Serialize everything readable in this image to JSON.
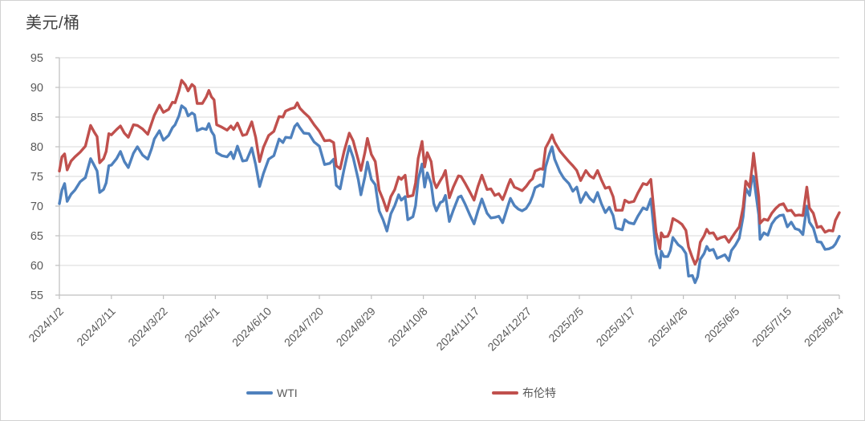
{
  "chart_data": {
    "type": "line",
    "title": "美元/桶",
    "y_axis": {
      "min": 55,
      "max": 95,
      "step": 5,
      "ticks": [
        95,
        90,
        85,
        80,
        75,
        70,
        65,
        60,
        55
      ]
    },
    "x_axis": {
      "tick_labels": [
        "2024/1/2",
        "2024/2/11",
        "2024/3/22",
        "2024/5/1",
        "2024/6/10",
        "2024/7/20",
        "2024/8/29",
        "2024/10/8",
        "2024/11/17",
        "2024/12/27",
        "2025/2/5",
        "2025/3/17",
        "2025/4/26",
        "2025/6/5",
        "2025/7/15",
        "2025/8/24"
      ],
      "tick_days": [
        0,
        40,
        80,
        120,
        160,
        200,
        240,
        280,
        320,
        360,
        400,
        440,
        480,
        520,
        560,
        600
      ],
      "label_rotation_deg": -45
    },
    "grid": true,
    "legend_position": "bottom",
    "colors": {
      "wti": "#4F81BD",
      "brent": "#C0504D",
      "grid": "#D9D9D9",
      "axis": "#BFBFBF",
      "tick_text": "#595959",
      "title_text": "#404040"
    },
    "days": [
      0,
      2,
      4,
      6,
      9,
      12,
      16,
      20,
      24,
      27,
      29,
      31,
      34,
      36,
      38,
      40,
      44,
      47,
      50,
      53,
      57,
      60,
      64,
      68,
      71,
      73,
      77,
      80,
      84,
      87,
      89,
      92,
      94,
      97,
      99,
      102,
      104,
      106,
      110,
      113,
      115,
      117,
      119,
      121,
      125,
      129,
      132,
      134,
      137,
      141,
      144,
      148,
      151,
      154,
      157,
      161,
      165,
      169,
      172,
      174,
      178,
      181,
      183,
      185,
      188,
      192,
      196,
      200,
      204,
      208,
      211,
      213,
      216,
      219,
      223,
      226,
      230,
      232,
      235,
      237,
      240,
      243,
      246,
      249,
      252,
      255,
      258,
      261,
      263,
      266,
      268,
      272,
      274,
      276,
      279,
      281,
      283,
      286,
      288,
      290,
      293,
      295,
      297,
      300,
      303,
      307,
      309,
      312,
      316,
      319,
      322,
      325,
      329,
      332,
      335,
      338,
      341,
      343,
      345,
      347,
      350,
      353,
      356,
      359,
      362,
      364,
      366,
      370,
      372,
      374,
      377,
      379,
      381,
      385,
      388,
      392,
      395,
      398,
      401,
      405,
      408,
      411,
      414,
      417,
      420,
      423,
      426,
      428,
      433,
      435,
      438,
      442,
      445,
      449,
      452,
      455,
      457,
      459,
      462,
      463,
      465,
      468,
      470,
      472,
      476,
      479,
      482,
      484,
      487,
      489,
      491,
      493,
      496,
      498,
      500,
      503,
      506,
      509,
      512,
      515,
      517,
      520,
      523,
      526,
      528,
      531,
      533,
      534,
      538,
      539,
      542,
      545,
      548,
      551,
      554,
      557,
      560,
      563,
      566,
      569,
      572,
      575,
      577,
      580,
      583,
      586,
      589,
      592,
      595,
      597,
      600
    ],
    "series": [
      {
        "name": "WTI",
        "color": "#4F81BD",
        "values": [
          70.4,
          72.7,
          73.8,
          70.8,
          72.0,
          72.7,
          74.1,
          74.8,
          78.0,
          76.8,
          75.9,
          72.3,
          72.8,
          73.9,
          76.8,
          76.9,
          78.0,
          79.2,
          77.5,
          76.5,
          78.9,
          80.0,
          78.6,
          77.9,
          79.7,
          81.3,
          82.7,
          81.1,
          81.9,
          83.2,
          83.7,
          85.2,
          86.9,
          86.4,
          85.2,
          85.7,
          85.4,
          82.7,
          83.1,
          82.9,
          83.9,
          82.6,
          81.9,
          79.0,
          78.5,
          78.3,
          79.1,
          78.0,
          80.1,
          77.6,
          77.7,
          79.8,
          77.0,
          73.3,
          75.5,
          77.9,
          78.5,
          81.3,
          80.7,
          81.6,
          81.5,
          83.4,
          83.9,
          83.2,
          82.3,
          82.2,
          80.8,
          80.1,
          77.0,
          77.2,
          77.9,
          73.5,
          72.9,
          76.2,
          80.1,
          78.2,
          74.4,
          71.9,
          74.9,
          77.4,
          74.5,
          73.6,
          69.2,
          67.7,
          65.8,
          68.7,
          70.1,
          71.9,
          71.0,
          71.6,
          67.7,
          68.2,
          70.1,
          74.4,
          77.1,
          73.2,
          75.6,
          73.8,
          70.4,
          69.2,
          70.6,
          70.8,
          71.8,
          67.4,
          69.3,
          71.5,
          71.7,
          70.4,
          68.4,
          67.0,
          69.2,
          71.2,
          68.8,
          68.0,
          68.1,
          68.3,
          67.2,
          68.6,
          70.0,
          71.3,
          70.1,
          69.5,
          69.2,
          69.6,
          70.6,
          71.7,
          73.1,
          73.6,
          73.3,
          76.6,
          78.8,
          80.0,
          77.9,
          75.8,
          74.7,
          73.8,
          72.5,
          73.2,
          70.6,
          72.3,
          71.3,
          70.7,
          72.3,
          70.4,
          68.9,
          69.8,
          68.4,
          66.3,
          66.0,
          67.7,
          67.2,
          67.0,
          68.3,
          69.7,
          69.4,
          71.2,
          66.9,
          62.0,
          59.6,
          62.4,
          61.5,
          61.5,
          62.5,
          64.7,
          63.5,
          63.0,
          62.0,
          58.2,
          58.3,
          57.1,
          58.1,
          61.0,
          62.0,
          63.2,
          62.5,
          62.7,
          61.2,
          61.5,
          61.8,
          60.8,
          62.5,
          63.4,
          64.6,
          68.2,
          73.0,
          71.8,
          75.1,
          75.0,
          68.5,
          64.4,
          65.5,
          65.1,
          67.0,
          67.9,
          68.4,
          68.5,
          66.5,
          67.3,
          66.2,
          66.0,
          65.2,
          70.0,
          67.3,
          66.3,
          64.0,
          63.9,
          62.7,
          62.8,
          63.1,
          63.6,
          64.9
        ]
      },
      {
        "name": "布伦特",
        "color": "#C0504D",
        "values": [
          75.9,
          78.3,
          78.8,
          76.1,
          77.6,
          78.3,
          79.1,
          80.1,
          83.6,
          82.4,
          81.7,
          77.3,
          78.0,
          79.2,
          82.2,
          82.0,
          82.9,
          83.5,
          82.3,
          81.6,
          83.7,
          83.6,
          83.0,
          82.1,
          84.0,
          85.3,
          87.0,
          85.8,
          86.3,
          87.5,
          87.4,
          89.4,
          91.2,
          90.4,
          89.4,
          90.5,
          90.1,
          87.3,
          87.3,
          88.4,
          89.5,
          88.4,
          87.9,
          83.7,
          83.3,
          82.8,
          83.5,
          82.9,
          84.0,
          81.9,
          82.1,
          84.2,
          81.6,
          77.5,
          79.9,
          81.9,
          82.6,
          85.1,
          85.0,
          86.0,
          86.4,
          86.6,
          87.4,
          86.5,
          85.8,
          85.0,
          83.7,
          82.6,
          81.0,
          81.1,
          80.7,
          76.8,
          76.3,
          79.2,
          82.3,
          81.0,
          77.7,
          76.0,
          79.0,
          81.4,
          78.7,
          77.5,
          72.7,
          71.1,
          69.2,
          71.6,
          72.8,
          74.9,
          74.5,
          75.2,
          71.6,
          71.8,
          73.9,
          78.0,
          80.9,
          76.6,
          79.0,
          77.5,
          74.2,
          73.1,
          74.3,
          75.0,
          76.0,
          71.4,
          73.2,
          75.1,
          75.0,
          73.9,
          72.3,
          71.0,
          73.3,
          75.2,
          72.8,
          72.9,
          71.8,
          72.1,
          71.1,
          72.2,
          73.4,
          74.5,
          73.2,
          72.9,
          72.6,
          73.3,
          74.2,
          74.6,
          75.9,
          76.3,
          76.2,
          79.8,
          81.0,
          82.0,
          80.8,
          79.3,
          78.5,
          77.5,
          76.8,
          76.0,
          74.3,
          76.0,
          75.1,
          74.7,
          76.0,
          74.4,
          73.0,
          73.2,
          71.6,
          69.3,
          69.3,
          71.0,
          70.6,
          70.8,
          72.2,
          73.8,
          73.6,
          74.5,
          70.1,
          65.6,
          62.8,
          65.5,
          64.8,
          64.9,
          65.9,
          67.9,
          67.4,
          66.9,
          65.9,
          63.1,
          61.3,
          60.2,
          61.1,
          63.9,
          65.0,
          66.1,
          65.4,
          65.5,
          64.4,
          64.7,
          64.9,
          63.9,
          64.6,
          65.6,
          66.5,
          69.8,
          74.2,
          73.2,
          76.7,
          78.9,
          71.5,
          67.1,
          67.8,
          67.6,
          68.8,
          69.6,
          70.2,
          70.4,
          69.2,
          69.3,
          68.4,
          68.5,
          68.4,
          73.2,
          69.7,
          68.8,
          66.4,
          66.6,
          65.6,
          65.9,
          65.8,
          67.6,
          68.9
        ]
      }
    ]
  }
}
